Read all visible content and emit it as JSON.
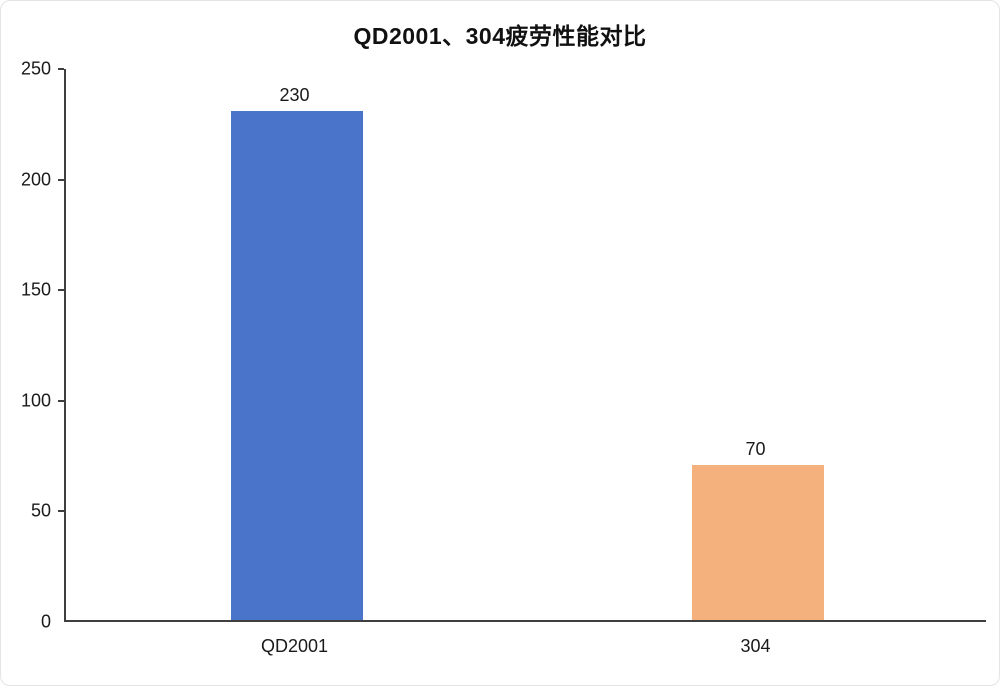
{
  "chart_data": {
    "type": "bar",
    "title": "QD2001、304疲劳性能对比",
    "categories": [
      "QD2001",
      "304"
    ],
    "values": [
      230,
      70
    ],
    "data_labels": [
      "230",
      "70"
    ],
    "bar_colors": [
      "#4A74C9",
      "#F4B17E"
    ],
    "yticks": [
      "0",
      "50",
      "100",
      "150",
      "200",
      "250"
    ],
    "ytick_values": [
      0,
      50,
      100,
      150,
      200,
      250
    ],
    "ylim": [
      0,
      250
    ],
    "xlabel": "",
    "ylabel": "",
    "grid": false,
    "legend": "none",
    "axis_color": "#3f3f3f",
    "text_color": "#1a1a1a"
  }
}
